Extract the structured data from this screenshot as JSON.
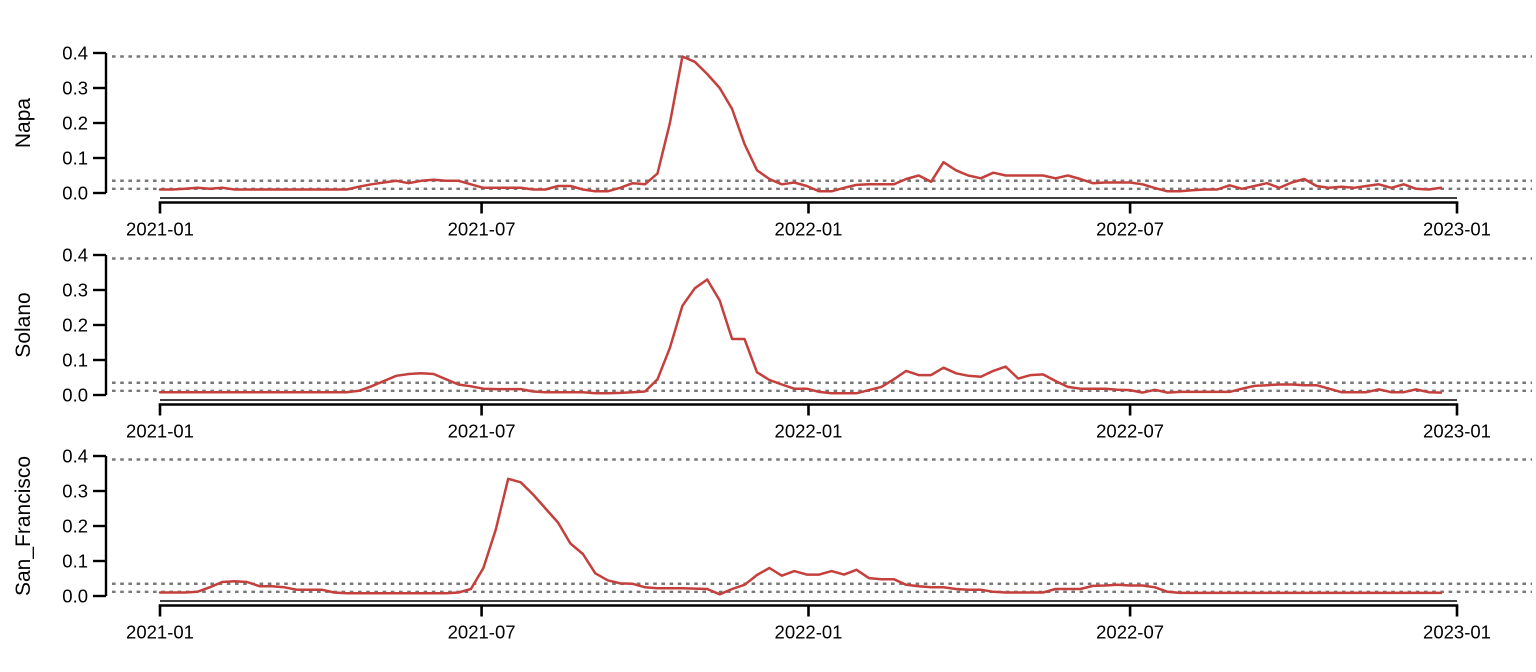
{
  "chart_data": {
    "type": "line",
    "title": "",
    "layout": "three stacked small-multiple panels sharing identical axes",
    "frequency": "weekly",
    "start_date": "2021-01-01",
    "x_axis": {
      "tick_labels": [
        "2021-01",
        "2021-07",
        "2022-01",
        "2022-07",
        "2023-01"
      ],
      "range_days": 730
    },
    "y_axis": {
      "tick_labels": [
        "0.0",
        "0.1",
        "0.2",
        "0.3",
        "0.4"
      ],
      "ticks": [
        0.0,
        0.1,
        0.2,
        0.3,
        0.4
      ],
      "ylim": [
        0.0,
        0.4
      ]
    },
    "reference_lines": {
      "values": [
        0.39,
        0.035,
        0.012
      ],
      "style": "dotted",
      "color": "#787878"
    },
    "series_color": "#c4403c",
    "axis_color": "#000000",
    "panels": [
      {
        "label": "Napa",
        "peak": {
          "value": 0.39,
          "approx_date": "2021-10"
        },
        "values": [
          0.01,
          0.01,
          0.012,
          0.015,
          0.012,
          0.015,
          0.01,
          0.01,
          0.01,
          0.01,
          0.01,
          0.01,
          0.01,
          0.01,
          0.01,
          0.01,
          0.018,
          0.025,
          0.03,
          0.035,
          0.028,
          0.035,
          0.038,
          0.035,
          0.035,
          0.025,
          0.015,
          0.015,
          0.015,
          0.015,
          0.01,
          0.01,
          0.02,
          0.02,
          0.01,
          0.005,
          0.005,
          0.015,
          0.028,
          0.025,
          0.056,
          0.2,
          0.39,
          0.375,
          0.34,
          0.3,
          0.24,
          0.14,
          0.065,
          0.04,
          0.025,
          0.03,
          0.02,
          0.005,
          0.005,
          0.015,
          0.023,
          0.025,
          0.025,
          0.025,
          0.04,
          0.05,
          0.032,
          0.088,
          0.065,
          0.05,
          0.042,
          0.058,
          0.05,
          0.05,
          0.05,
          0.05,
          0.042,
          0.05,
          0.04,
          0.028,
          0.03,
          0.03,
          0.03,
          0.025,
          0.014,
          0.005,
          0.005,
          0.008,
          0.01,
          0.01,
          0.022,
          0.012,
          0.02,
          0.028,
          0.015,
          0.03,
          0.04,
          0.02,
          0.015,
          0.018,
          0.015,
          0.02,
          0.025,
          0.015,
          0.025,
          0.012,
          0.01,
          0.015
        ]
      },
      {
        "label": "Solano",
        "peak": {
          "value": 0.33,
          "approx_date": "2021-11"
        },
        "values": [
          0.008,
          0.008,
          0.008,
          0.008,
          0.008,
          0.008,
          0.008,
          0.008,
          0.008,
          0.008,
          0.008,
          0.008,
          0.008,
          0.008,
          0.008,
          0.008,
          0.012,
          0.025,
          0.04,
          0.055,
          0.06,
          0.062,
          0.06,
          0.045,
          0.03,
          0.025,
          0.018,
          0.017,
          0.017,
          0.017,
          0.01,
          0.008,
          0.008,
          0.008,
          0.008,
          0.005,
          0.005,
          0.006,
          0.008,
          0.01,
          0.045,
          0.135,
          0.255,
          0.305,
          0.33,
          0.27,
          0.16,
          0.16,
          0.065,
          0.043,
          0.03,
          0.018,
          0.018,
          0.009,
          0.005,
          0.005,
          0.005,
          0.014,
          0.023,
          0.045,
          0.069,
          0.057,
          0.057,
          0.078,
          0.062,
          0.055,
          0.052,
          0.069,
          0.081,
          0.047,
          0.057,
          0.059,
          0.04,
          0.023,
          0.018,
          0.018,
          0.018,
          0.015,
          0.014,
          0.007,
          0.015,
          0.007,
          0.009,
          0.009,
          0.009,
          0.009,
          0.009,
          0.018,
          0.026,
          0.028,
          0.03,
          0.03,
          0.028,
          0.028,
          0.018,
          0.008,
          0.008,
          0.008,
          0.016,
          0.008,
          0.008,
          0.016,
          0.008,
          0.007
        ]
      },
      {
        "label": "San_Francisco",
        "peak": {
          "value": 0.335,
          "approx_date": "2021-07"
        },
        "values": [
          0.01,
          0.01,
          0.01,
          0.012,
          0.025,
          0.04,
          0.042,
          0.04,
          0.028,
          0.028,
          0.025,
          0.018,
          0.018,
          0.018,
          0.01,
          0.008,
          0.008,
          0.008,
          0.008,
          0.008,
          0.008,
          0.008,
          0.008,
          0.008,
          0.01,
          0.02,
          0.08,
          0.19,
          0.335,
          0.325,
          0.29,
          0.25,
          0.21,
          0.15,
          0.12,
          0.065,
          0.045,
          0.036,
          0.035,
          0.025,
          0.022,
          0.022,
          0.022,
          0.021,
          0.02,
          0.005,
          0.02,
          0.032,
          0.06,
          0.08,
          0.058,
          0.071,
          0.061,
          0.061,
          0.071,
          0.061,
          0.075,
          0.051,
          0.048,
          0.048,
          0.032,
          0.028,
          0.025,
          0.025,
          0.02,
          0.018,
          0.018,
          0.012,
          0.01,
          0.01,
          0.01,
          0.01,
          0.02,
          0.02,
          0.02,
          0.029,
          0.03,
          0.032,
          0.03,
          0.03,
          0.025,
          0.012,
          0.009,
          0.009,
          0.009,
          0.009,
          0.009,
          0.009,
          0.009,
          0.009,
          0.009,
          0.009,
          0.009,
          0.009,
          0.009,
          0.009,
          0.009,
          0.009,
          0.009,
          0.009,
          0.009,
          0.009,
          0.009,
          0.009
        ]
      }
    ]
  }
}
